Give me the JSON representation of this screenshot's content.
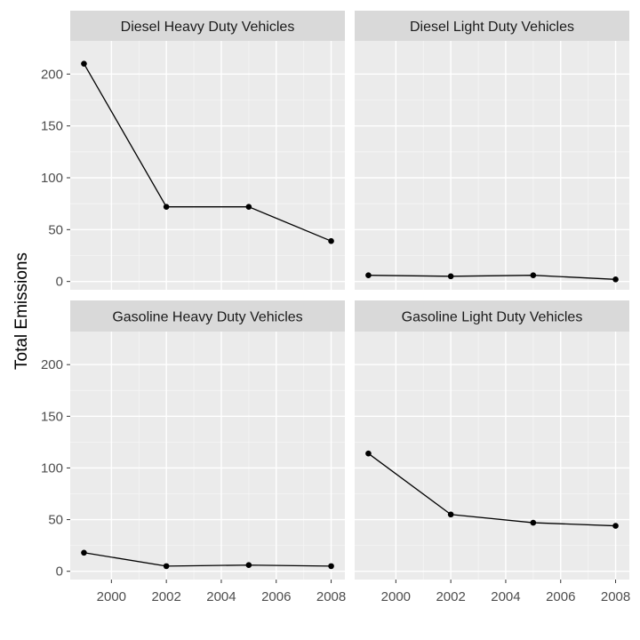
{
  "chart_data": {
    "type": "line",
    "ylabel": "Total Emissions",
    "xlabel": "",
    "xlim": [
      1998.5,
      2008.5
    ],
    "ylim": [
      -8,
      232
    ],
    "x_ticks": [
      2000,
      2002,
      2004,
      2006,
      2008
    ],
    "y_ticks": [
      0,
      50,
      100,
      150,
      200
    ],
    "x_tick_labels": [
      "2000",
      "2002",
      "2004",
      "2006",
      "2008"
    ],
    "y_tick_labels": [
      "0",
      "50",
      "100",
      "150",
      "200"
    ],
    "legend": "none",
    "grid": true,
    "facet_layout": "2x2",
    "panels": [
      {
        "title": "Diesel Heavy Duty Vehicles",
        "x": [
          1999,
          2002,
          2005,
          2008
        ],
        "y": [
          210,
          72,
          72,
          39
        ]
      },
      {
        "title": "Diesel Light Duty Vehicles",
        "x": [
          1999,
          2002,
          2005,
          2008
        ],
        "y": [
          6,
          5,
          6,
          2
        ]
      },
      {
        "title": "Gasoline Heavy Duty Vehicles",
        "x": [
          1999,
          2002,
          2005,
          2008
        ],
        "y": [
          18,
          5,
          6,
          5
        ]
      },
      {
        "title": "Gasoline Light Duty Vehicles",
        "x": [
          1999,
          2002,
          2005,
          2008
        ],
        "y": [
          114,
          55,
          47,
          44
        ]
      }
    ]
  },
  "colors": {
    "panel_background": "#ebebeb",
    "strip_background": "#d9d9d9",
    "grid_major": "#ffffff",
    "grid_minor": "#f5f5f5",
    "line": "#000000",
    "tick_text": "#4d4d4d"
  }
}
